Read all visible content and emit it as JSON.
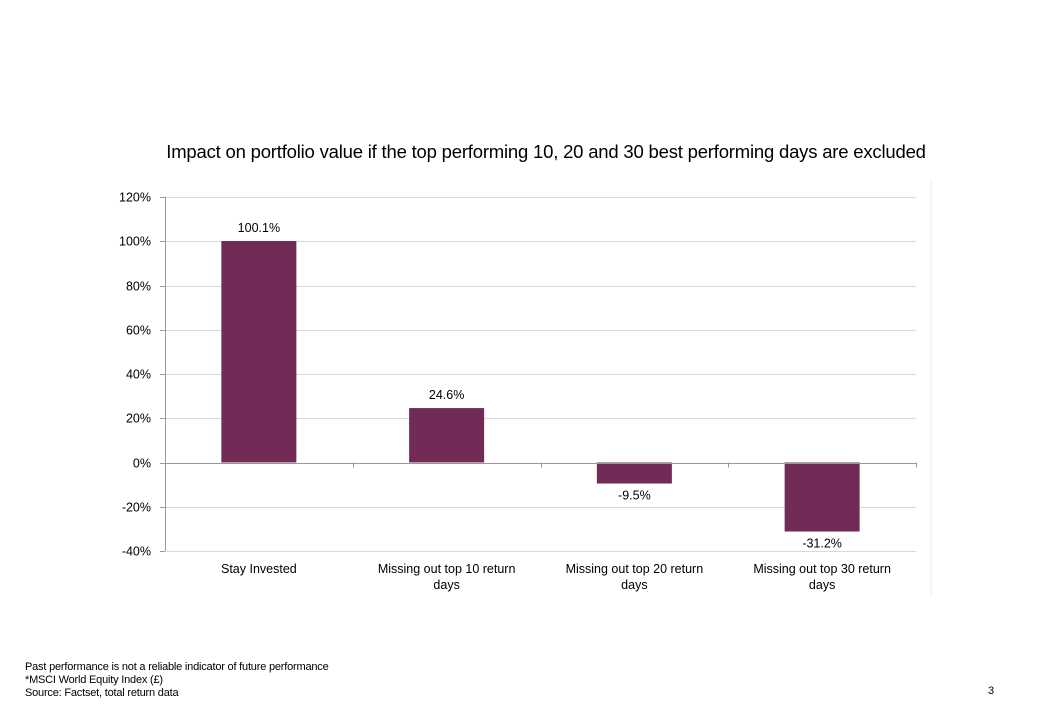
{
  "chart_data": {
    "type": "bar",
    "title": "Impact on portfolio value if the  top performing 10, 20 and 30 best performing days are excluded",
    "categories": [
      [
        "Stay Invested"
      ],
      [
        "Missing out top 10 return",
        "days"
      ],
      [
        "Missing out top 20 return",
        "days"
      ],
      [
        "Missing out top 30 return",
        "days"
      ]
    ],
    "values": [
      100.1,
      24.6,
      -9.5,
      -31.2
    ],
    "data_labels": [
      "100.1%",
      "24.6%",
      "-9.5%",
      "-31.2%"
    ],
    "yticks": [
      120,
      100,
      80,
      60,
      40,
      20,
      0,
      -20,
      -40
    ],
    "ytick_labels": [
      "120%",
      "100%",
      "80%",
      "60%",
      "40%",
      "20%",
      "0%",
      "-20%",
      "-40%"
    ],
    "ylim": [
      -40,
      120
    ],
    "xlabel": "",
    "ylabel": "",
    "grid": true,
    "legend": "none",
    "bar_color": "#722B56"
  },
  "footer": {
    "line1": "Past performance is not a reliable indicator of future performance",
    "line2": "*MSCI World Equity Index (£)",
    "line3": "Source: Factset, total return data"
  },
  "page_number": "3"
}
